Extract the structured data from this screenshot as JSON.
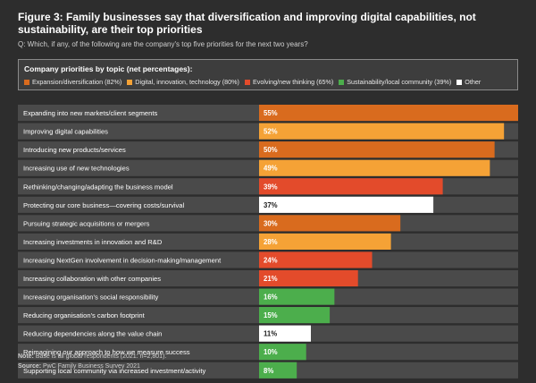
{
  "header": {
    "title": "Figure 3: Family businesses say that diversification and improving digital capabilities, not sustainability, are their top priorities",
    "subtitle": "Q: Which, if any, of the following are the company's top five priorities for the next two years?"
  },
  "legend": {
    "title": "Company priorities by topic (net percentages):",
    "items": [
      {
        "label": "Expansion/diversification (82%)",
        "color": "#d96b1e"
      },
      {
        "label": "Digital, innovation, technology (80%)",
        "color": "#f5a236"
      },
      {
        "label": "Evolving/new thinking (65%)",
        "color": "#e34b2b"
      },
      {
        "label": "Sustainability/local community (39%)",
        "color": "#4cae4c"
      },
      {
        "label": "Other",
        "color": "#ffffff"
      }
    ]
  },
  "chart_data": {
    "type": "bar",
    "orientation": "horizontal",
    "title": "Figure 3: Family businesses say that diversification and improving digital capabilities, not sustainability, are their top priorities",
    "xlim": [
      0,
      55
    ],
    "categories": [
      "Expanding into new markets/client segments",
      "Improving digital capabilities",
      "Introducing new products/services",
      "Increasing use of new technologies",
      "Rethinking/changing/adapting the business model",
      "Protecting our core business—covering costs/survival",
      "Pursuing strategic acquisitions or mergers",
      "Increasing investments in innovation and R&D",
      "Increasing NextGen involvement in decision-making/management",
      "Increasing collaboration with other companies",
      "Increasing organisation's social responsibility",
      "Reducing organisation's carbon footprint",
      "Reducing dependencies along the value chain",
      "Reimagining our approach to how we measure success",
      "Supporting local community via increased investment/activity"
    ],
    "values": [
      55,
      52,
      50,
      49,
      39,
      37,
      30,
      28,
      24,
      21,
      16,
      15,
      11,
      10,
      8
    ],
    "value_labels": [
      "55%",
      "52%",
      "50%",
      "49%",
      "39%",
      "37%",
      "30%",
      "28%",
      "24%",
      "21%",
      "16%",
      "15%",
      "11%",
      "10%",
      "8%"
    ],
    "colors": [
      "#d96b1e",
      "#f5a236",
      "#d96b1e",
      "#f5a236",
      "#e34b2b",
      "#ffffff",
      "#d96b1e",
      "#f5a236",
      "#e34b2b",
      "#e34b2b",
      "#4cae4c",
      "#4cae4c",
      "#ffffff",
      "#4cae4c",
      "#4cae4c"
    ]
  },
  "footnote": {
    "note_label": "Note:",
    "note_text": " Base is all global respondents (2021: n=2,801).",
    "source_label": "Source:",
    "source_text": " PwC Family Business Survey 2021"
  }
}
